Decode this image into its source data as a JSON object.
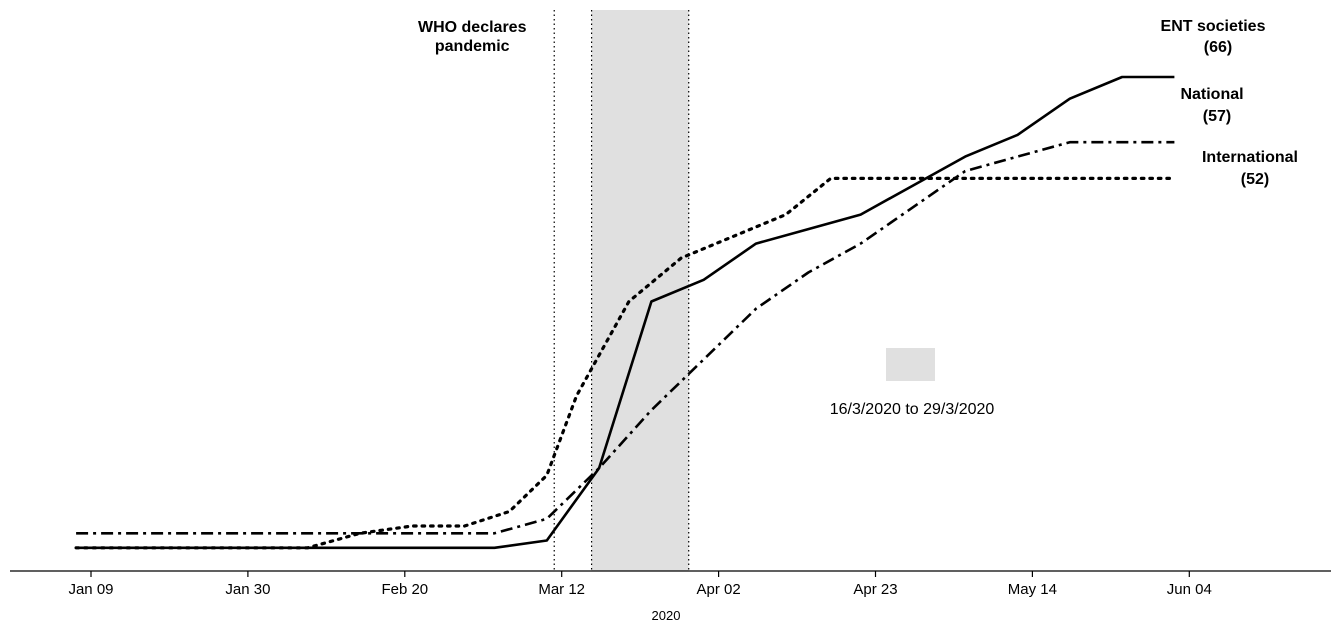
{
  "chart_data": {
    "type": "line",
    "xlabel": "2020",
    "ylabel": "",
    "x_tick_labels": [
      "Jan 09",
      "Jan 30",
      "Feb 20",
      "Mar 12",
      "Apr 02",
      "Apr 23",
      "May 14",
      "Jun 04"
    ],
    "x_ticks": [
      "2020-01-09",
      "2020-01-30",
      "2020-02-20",
      "2020-03-12",
      "2020-04-02",
      "2020-04-23",
      "2020-05-14",
      "2020-06-04"
    ],
    "x_range": [
      "2019-12-30",
      "2020-06-12"
    ],
    "y_range": [
      0,
      70
    ],
    "grid": false,
    "series": [
      {
        "name": "ENT societies",
        "end_label": "(66)",
        "style": "solid",
        "points": [
          [
            "2020-01-07",
            1
          ],
          [
            "2020-03-03",
            1
          ],
          [
            "2020-03-10",
            2
          ],
          [
            "2020-03-17",
            12
          ],
          [
            "2020-03-24",
            35
          ],
          [
            "2020-03-31",
            38
          ],
          [
            "2020-04-07",
            43
          ],
          [
            "2020-04-14",
            45
          ],
          [
            "2020-04-21",
            47
          ],
          [
            "2020-04-28",
            51
          ],
          [
            "2020-05-05",
            55
          ],
          [
            "2020-05-12",
            58
          ],
          [
            "2020-05-19",
            63
          ],
          [
            "2020-05-26",
            66
          ],
          [
            "2020-06-02",
            66
          ]
        ]
      },
      {
        "name": "National",
        "end_label": "(57)",
        "style": "dashdot",
        "points": [
          [
            "2020-01-07",
            3
          ],
          [
            "2020-03-03",
            3
          ],
          [
            "2020-03-10",
            5
          ],
          [
            "2020-03-17",
            12
          ],
          [
            "2020-03-24",
            20
          ],
          [
            "2020-03-31",
            27
          ],
          [
            "2020-04-07",
            34
          ],
          [
            "2020-04-14",
            39
          ],
          [
            "2020-04-21",
            43
          ],
          [
            "2020-04-28",
            48
          ],
          [
            "2020-05-05",
            53
          ],
          [
            "2020-05-12",
            55
          ],
          [
            "2020-05-19",
            57
          ],
          [
            "2020-05-26",
            57
          ],
          [
            "2020-06-02",
            57
          ]
        ]
      },
      {
        "name": "International",
        "end_label": "(52)",
        "style": "dotted",
        "points": [
          [
            "2020-01-07",
            1
          ],
          [
            "2020-02-07",
            1
          ],
          [
            "2020-02-14",
            3
          ],
          [
            "2020-02-21",
            4
          ],
          [
            "2020-02-28",
            4
          ],
          [
            "2020-03-05",
            6
          ],
          [
            "2020-03-10",
            11
          ],
          [
            "2020-03-14",
            22
          ],
          [
            "2020-03-21",
            35
          ],
          [
            "2020-03-28",
            41
          ],
          [
            "2020-04-04",
            44
          ],
          [
            "2020-04-11",
            47
          ],
          [
            "2020-04-17",
            52
          ],
          [
            "2020-04-24",
            52
          ],
          [
            "2020-05-01",
            52
          ],
          [
            "2020-05-08",
            52
          ],
          [
            "2020-05-15",
            52
          ],
          [
            "2020-05-22",
            52
          ],
          [
            "2020-05-29",
            52
          ],
          [
            "2020-06-02",
            52
          ]
        ]
      }
    ],
    "annotations": [
      {
        "label_lines": [
          "WHO declares",
          "pandemic"
        ],
        "date": "2020-03-11"
      }
    ],
    "shaded_period": {
      "start": "2020-03-16",
      "end": "2020-03-29",
      "legend_label": "16/3/2020 to 29/3/2020",
      "color": "#e0e0e0"
    }
  }
}
